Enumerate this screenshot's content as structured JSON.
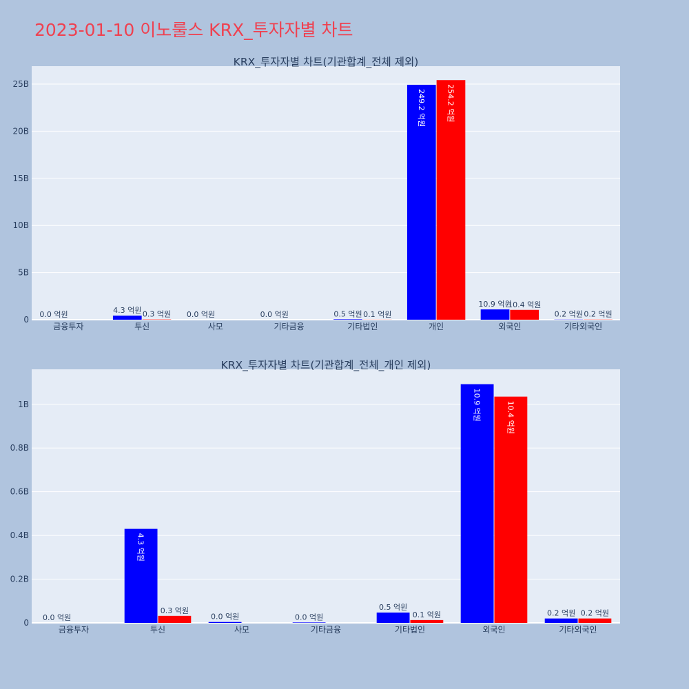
{
  "page": {
    "title": "2023-01-10 이노룰스 KRX_투자자별 차트"
  },
  "colors": {
    "background": "#b0c4de",
    "plot_bg": "#e5ecf6",
    "grid": "#ffffff",
    "title": "#ef4150",
    "text": "#2a3f5f",
    "series_1": "#0000ff",
    "series_2": "#ff0000"
  },
  "chart_data": [
    {
      "type": "bar",
      "title": "KRX_투자자별 차트(기관합계_전체 제외)",
      "categories": [
        "금융투자",
        "투신",
        "사모",
        "기타금융",
        "기타법인",
        "개인",
        "외국인",
        "기타외국인"
      ],
      "series": [
        {
          "color": "#0000ff",
          "values": [
            0,
            430000000,
            0,
            0,
            50000000,
            24920000000,
            1090000000,
            20000000
          ],
          "labels": [
            "0.0 억원",
            "4.3 억원",
            "0.0 억원",
            "0.0 억원",
            "0.5 억원",
            "249.2 억원",
            "10.9 억원",
            "0.2 억원"
          ]
        },
        {
          "color": "#ff0000",
          "values": [
            0,
            30000000,
            0,
            0,
            10000000,
            25420000000,
            1040000000,
            20000000
          ],
          "labels": [
            "",
            "0.3 억원",
            "",
            "",
            "0.1 억원",
            "254.2 억원",
            "10.4 억원",
            "0.2 억원"
          ]
        }
      ],
      "ylim": [
        0,
        26900000000
      ],
      "yticks": [
        0,
        5000000000,
        10000000000,
        15000000000,
        20000000000,
        25000000000
      ],
      "ytick_labels": [
        "0",
        "5B",
        "10B",
        "15B",
        "20B",
        "25B"
      ],
      "grid": true,
      "legend": "none"
    },
    {
      "type": "bar",
      "title": "KRX_투자자별 차트(기관합계_전체_개인 제외)",
      "categories": [
        "금융투자",
        "투신",
        "사모",
        "기타금융",
        "기타법인",
        "외국인",
        "기타외국인"
      ],
      "series": [
        {
          "color": "#0000ff",
          "values": [
            0,
            430000000,
            4000000,
            2000000,
            47000000,
            1092000000,
            20000000
          ],
          "labels": [
            "0.0 억원",
            "4.3 억원",
            "0.0 억원",
            "0.0 억원",
            "0.5 억원",
            "10.9 억원",
            "0.2 억원"
          ]
        },
        {
          "color": "#ff0000",
          "values": [
            0,
            32000000,
            0,
            0,
            13000000,
            1035000000,
            20000000
          ],
          "labels": [
            "",
            "0.3 억원",
            "",
            "",
            "0.1 억원",
            "10.4 억원",
            "0.2 억원"
          ]
        }
      ],
      "ylim": [
        0,
        1160000000
      ],
      "yticks": [
        0,
        200000000,
        400000000,
        600000000,
        800000000,
        1000000000
      ],
      "ytick_labels": [
        "0",
        "0.2B",
        "0.4B",
        "0.6B",
        "0.8B",
        "1B"
      ],
      "grid": true,
      "legend": "none"
    }
  ]
}
